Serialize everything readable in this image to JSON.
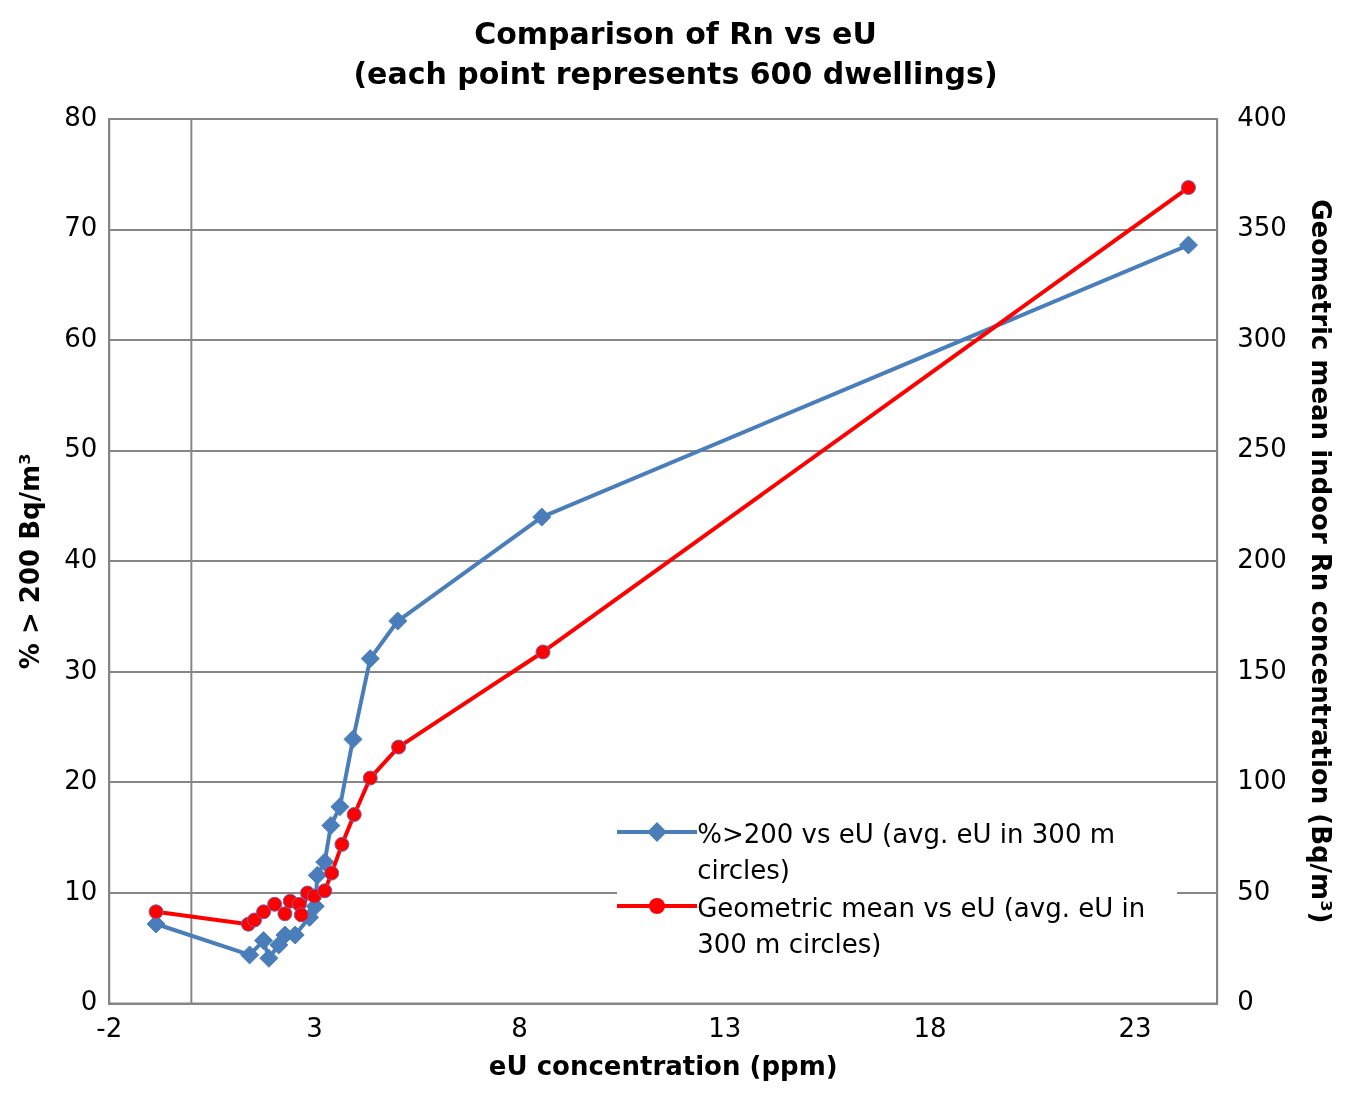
{
  "chart_data": {
    "type": "line",
    "title": "Comparison of Rn vs eU",
    "subtitle": "(each point represents 600 dwellings)",
    "xlabel": "eU concentration (ppm)",
    "ylabel": "% > 200 Bq/m³",
    "y2label": "Geometric mean indoor Rn concentration (Bq/m³)",
    "xlim": [
      -2,
      25
    ],
    "xticks": [
      -2,
      3,
      8,
      13,
      18,
      23
    ],
    "ylim": [
      0,
      80
    ],
    "yticks": [
      0,
      10,
      20,
      30,
      40,
      50,
      60,
      70,
      80
    ],
    "y2lim": [
      0,
      400
    ],
    "y2ticks": [
      0,
      50,
      100,
      150,
      200,
      250,
      300,
      350,
      400
    ],
    "grid": "y",
    "legend": "bottom right",
    "line_style": "solid",
    "ref_lines": [
      {
        "axis": "x",
        "value": 0,
        "label": null,
        "color": "#868686"
      }
    ],
    "series": [
      {
        "name": "%>200 vs eU (avg. eU in 300 m circles)",
        "color": "#4a7ebb",
        "marker": "diamond",
        "x": [
          -0.86,
          1.42,
          1.76,
          1.89,
          2.13,
          2.28,
          2.53,
          2.88,
          3.02,
          3.07,
          3.25,
          3.4,
          3.62,
          3.94,
          4.36,
          5.03,
          8.54,
          24.3
        ],
        "values": [
          7.2,
          4.4,
          5.7,
          4.1,
          5.3,
          6.2,
          6.2,
          7.8,
          8.8,
          11.6,
          12.8,
          16.1,
          17.8,
          23.9,
          31.2,
          34.6,
          44.0,
          68.6
        ]
      },
      {
        "name": "Geometric mean vs eU (avg. eU in 300 m circles)",
        "color": "#ff0000",
        "marker": "circle",
        "axis": "y2",
        "x": [
          -0.86,
          1.39,
          1.54,
          1.76,
          2.03,
          2.28,
          2.41,
          2.63,
          2.68,
          2.83,
          3.0,
          3.25,
          3.42,
          3.67,
          3.97,
          4.36,
          5.05,
          8.57,
          24.3
        ],
        "values": [
          41.5,
          35.9,
          37.8,
          41.5,
          44.9,
          40.6,
          46.3,
          44.9,
          40.1,
          50,
          48.6,
          51,
          59,
          72,
          85.5,
          102,
          116,
          159,
          369
        ]
      }
    ]
  }
}
